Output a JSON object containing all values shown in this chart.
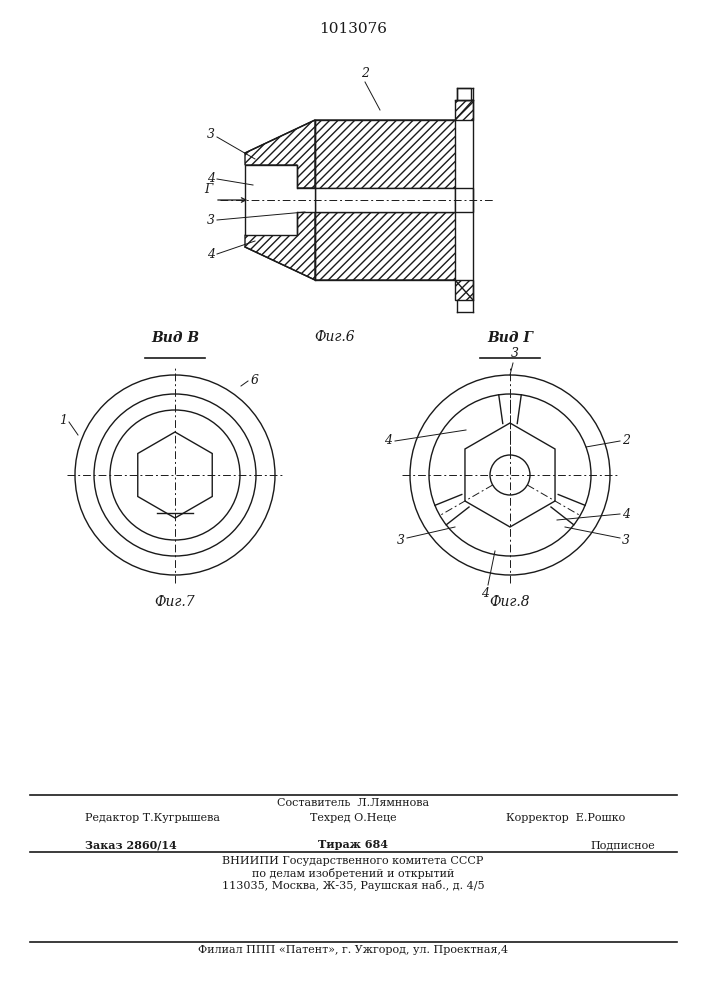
{
  "title": "1013076",
  "fig6_caption": "Фиг.6",
  "fig7_caption": "Фиг.7",
  "fig8_caption": "Фиг.8",
  "vid_b": "Вид В",
  "vid_g": "Вид Г",
  "footer_composer": "Составитель  Л.Лямннова",
  "footer_editor": "Редактор Т.Кугрышева",
  "footer_techred": "Техред О.Неце",
  "footer_corrector": "Корректор  Е.Рошко",
  "footer_order": "Заказ 2860/14",
  "footer_tirazh": "Тираж 684",
  "footer_podp": "Подписное",
  "footer_vniip1": "ВНИИПИ Государственного комитета СССР",
  "footer_vniip2": "по делам изобретений и открытий",
  "footer_addr": "113035, Москва, Ж-35, Раушская наб., д. 4/5",
  "footer_filial": "Филиал ППП «Патент», г. Ужгород, ул. Проектная,4",
  "line_color": "#1a1a1a"
}
